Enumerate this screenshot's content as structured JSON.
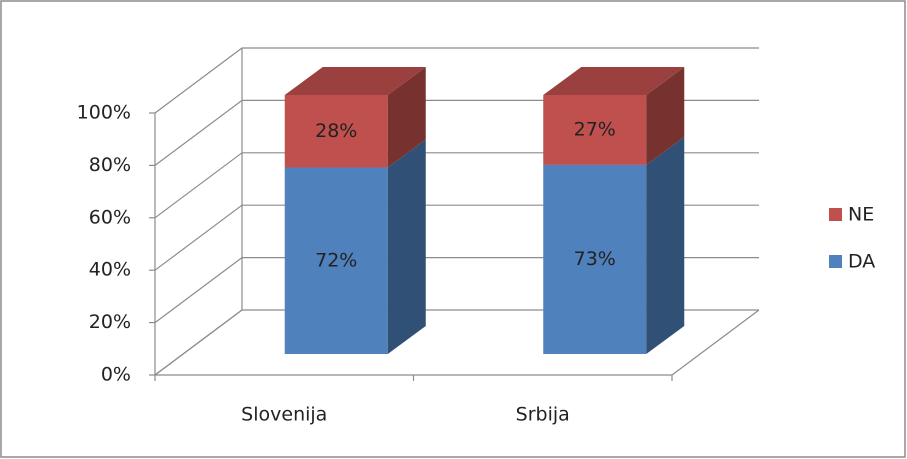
{
  "chart_data": {
    "type": "stacked_bar_3d",
    "categories": [
      "Slovenija",
      "Srbija"
    ],
    "series": [
      {
        "name": "DA",
        "color": "#4f81bd",
        "values": [
          72,
          73
        ],
        "value_labels": [
          "72%",
          "73%"
        ]
      },
      {
        "name": "NE",
        "color": "#c0504d",
        "values": [
          28,
          27
        ],
        "value_labels": [
          "28%",
          "27%"
        ]
      }
    ],
    "ylim": [
      0,
      100
    ],
    "yticks": [
      {
        "value": 0,
        "label": "0%"
      },
      {
        "value": 20,
        "label": "20%"
      },
      {
        "value": 40,
        "label": "40%"
      },
      {
        "value": 60,
        "label": "60%"
      },
      {
        "value": 80,
        "label": "80%"
      },
      {
        "value": 100,
        "label": "100%"
      }
    ],
    "grid": true,
    "legend": "right"
  }
}
